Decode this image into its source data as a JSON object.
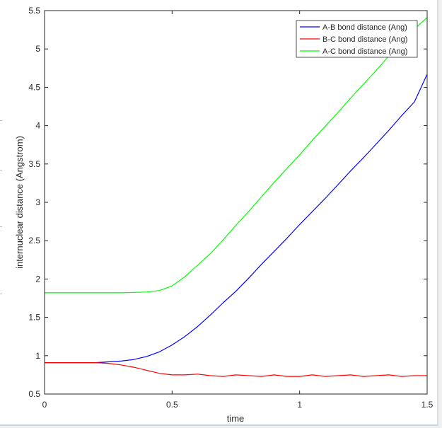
{
  "chart_data": {
    "type": "line",
    "title": "",
    "xlabel": "time",
    "ylabel": "internuclear distance (Angstrom)",
    "xlim": [
      0,
      1.5
    ],
    "ylim": [
      0.5,
      5.5
    ],
    "xticks": [
      0,
      0.5,
      1,
      1.5
    ],
    "xtick_labels": [
      "0",
      "0.5",
      "1",
      "1.5"
    ],
    "yticks": [
      0.5,
      1,
      1.5,
      2,
      2.5,
      3,
      3.5,
      4,
      4.5,
      5,
      5.5
    ],
    "ytick_labels": [
      "0.5",
      "1",
      "1.5",
      "2",
      "2.5",
      "3",
      "3.5",
      "4",
      "4.5",
      "5",
      "5.5"
    ],
    "grid": false,
    "legend_position": "top-right",
    "series": [
      {
        "name": "A-B bond distance (Ang)",
        "color": "#0000ff",
        "x": [
          0,
          0.1,
          0.2,
          0.25,
          0.3,
          0.35,
          0.4,
          0.45,
          0.5,
          0.55,
          0.6,
          0.65,
          0.7,
          0.75,
          0.8,
          0.85,
          0.9,
          0.95,
          1.0,
          1.05,
          1.1,
          1.15,
          1.2,
          1.25,
          1.3,
          1.35,
          1.4,
          1.45,
          1.5
        ],
        "y": [
          0.91,
          0.91,
          0.91,
          0.92,
          0.93,
          0.95,
          0.99,
          1.05,
          1.14,
          1.25,
          1.38,
          1.53,
          1.69,
          1.84,
          2.01,
          2.19,
          2.36,
          2.53,
          2.71,
          2.88,
          3.05,
          3.23,
          3.41,
          3.58,
          3.76,
          3.94,
          4.13,
          4.31,
          4.67
        ]
      },
      {
        "name": "B-C bond distance (Ang)",
        "color": "#ff0000",
        "x": [
          0,
          0.1,
          0.2,
          0.25,
          0.3,
          0.35,
          0.4,
          0.45,
          0.5,
          0.55,
          0.6,
          0.65,
          0.7,
          0.75,
          0.8,
          0.85,
          0.9,
          0.95,
          1.0,
          1.05,
          1.1,
          1.15,
          1.2,
          1.25,
          1.3,
          1.35,
          1.4,
          1.45,
          1.5
        ],
        "y": [
          0.91,
          0.91,
          0.91,
          0.9,
          0.88,
          0.85,
          0.81,
          0.77,
          0.75,
          0.75,
          0.76,
          0.74,
          0.73,
          0.75,
          0.74,
          0.73,
          0.75,
          0.73,
          0.73,
          0.75,
          0.73,
          0.74,
          0.75,
          0.73,
          0.74,
          0.75,
          0.73,
          0.74,
          0.74
        ]
      },
      {
        "name": "A-C bond distance (Ang)",
        "color": "#00ff00",
        "x": [
          0,
          0.1,
          0.2,
          0.3,
          0.4,
          0.45,
          0.5,
          0.55,
          0.6,
          0.65,
          0.7,
          0.75,
          0.8,
          0.85,
          0.9,
          0.95,
          1.0,
          1.05,
          1.1,
          1.15,
          1.2,
          1.25,
          1.3,
          1.35,
          1.4,
          1.45,
          1.5
        ],
        "y": [
          1.82,
          1.82,
          1.82,
          1.82,
          1.83,
          1.85,
          1.91,
          2.03,
          2.18,
          2.33,
          2.51,
          2.7,
          2.88,
          3.07,
          3.26,
          3.44,
          3.62,
          3.81,
          3.99,
          4.17,
          4.36,
          4.54,
          4.72,
          4.91,
          5.09,
          5.26,
          5.41
        ]
      }
    ]
  }
}
